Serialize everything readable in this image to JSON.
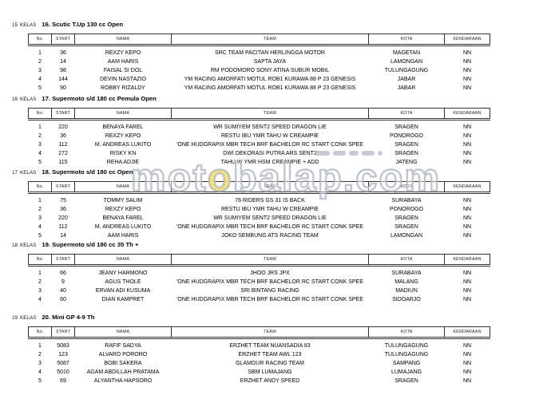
{
  "watermark": {
    "part1": "mot",
    "highlight": "o",
    "part2": "balap.com",
    "outline_color": "#afb5c1",
    "highlight_color": "#f3e26e"
  },
  "columns": [
    "No.",
    "START",
    "NAMA",
    "TEAM",
    "KOTA",
    "KENDARAAN"
  ],
  "sections": [
    {
      "num": "15",
      "kelas": "KELAS",
      "title": "16. Scutic T.Up 130 cc Open",
      "rows": [
        [
          "1",
          "36",
          "REXZY KEPO",
          "SRC TEAM PACITAN HERLINGGA MOTOR",
          "MAGETAN",
          "NN"
        ],
        [
          "2",
          "14",
          "AAM HARIS",
          "SAPTA JAYA",
          "LAMONGAN",
          "NN"
        ],
        [
          "3",
          "98",
          "FAISAL SI DOL",
          "RM PODOMORO SONY ATINA SUBUR MOBIL",
          "TULUNGAGUNG",
          "NN"
        ],
        [
          "4",
          "144",
          "DEVIN NASTAZIO",
          "YM RACING AMORFATI MOTUL ROB1 KURAWA 88 P 23 GENESIS",
          "JABAR",
          "NN"
        ],
        [
          "5",
          "90",
          "ROBBY RIZALDY",
          "YM RACING AMORFATI MOTUL ROB1 KURAWA 88 P 23 GENESIS",
          "JABAR",
          "NN"
        ]
      ]
    },
    {
      "num": "16",
      "kelas": "KELAS",
      "title": "17. Supermoto s/d 180 cc Pemula Open",
      "rows": [
        [
          "1",
          "220",
          "BENAYA FAREL",
          "WR SUMIYEM SENT2 SPEED DRAGON LIE",
          "SRAGEN",
          "NN"
        ],
        [
          "2",
          "36",
          "REXZY KEPO",
          "RESTU IBU YMR TAHU W CREAMPIE",
          "PONOROGO",
          "NN"
        ],
        [
          "3",
          "112",
          "M. ANDREAS LUKITO",
          "'ONE HUDGRAPIX MBR TECH BRF BACHELOR RC START CONK SPEE",
          "SRAGEN",
          "NN"
        ],
        [
          "4",
          "272",
          "RISKY KN",
          "DWI DEKORASI PUTRA ARS SENT2",
          "SRAGEN",
          "NN"
        ],
        [
          "5",
          "115",
          "REHA ADJIE",
          "TAHU W YMR HSM CREAMPIE + ADD",
          "JATENG",
          "NN"
        ]
      ]
    },
    {
      "num": "17",
      "kelas": "KELAS",
      "title": "18. Supermoto s/d 180 cc Open",
      "rows": [
        [
          "1",
          "75",
          "TOMMY SALIM",
          "76 RIDERS GS 31 IS BACK",
          "SURABAYA",
          "NN"
        ],
        [
          "2",
          "36",
          "REXZY KEPO",
          "RESTU IBU YMR TAHU W CREAMPIE",
          "PONOROGO",
          "NN"
        ],
        [
          "3",
          "220",
          "BENAYA FAREL",
          "WR SUMIYEM SENT2 SPEED DRAGON LIE",
          "SRAGEN",
          "NN"
        ],
        [
          "4",
          "112",
          "M. ANDREAS LUKITO",
          "'ONE HUDGRAPIX MBR TECH BRF BACHELOR RC START CONK SPEE",
          "SRAGEN",
          "NN"
        ],
        [
          "5",
          "14",
          "AAM HARIS",
          "JOKO SEMBUNG ATS RACING TEAM",
          "LAMONGAN",
          "NN"
        ]
      ]
    },
    {
      "num": "18",
      "kelas": "KELAS",
      "title": "19. Supermoto s/d 180 cc 35 Th +",
      "rows": [
        [
          "1",
          "66",
          "JEANY HARMONO",
          "JHOO JRS JPX",
          "SURABAYA",
          "NN"
        ],
        [
          "2",
          "9",
          "AGUS THOLE",
          "'ONE HUDGRAPIX MBR TECH BRF BACHELOR RC START CONK SPEE",
          "MALANG",
          "NN"
        ],
        [
          "3",
          "40",
          "ERVAN ADI KUSUMA",
          "SRI BINTANG RACING",
          "MADIUN",
          "NN"
        ],
        [
          "4",
          "60",
          "DIAN KAMPRET",
          "'ONE HUDGRAPIX MBR TECH BRF BACHELOR RC START CONK SPEE",
          "SIDOARJO",
          "NN"
        ]
      ]
    },
    {
      "num": "19",
      "kelas": "KELAS",
      "title": "20. Mini GP 4-9 Th",
      "rows": [
        [
          "1",
          "5083",
          "RAFIF SADYA",
          "ERZHET TEAM NUANSADIA 83",
          "TULUNGAGUNG",
          "NN"
        ],
        [
          "2",
          "123",
          "ALVARO PORORO",
          "ERZHET TEAM AWL 123",
          "TULUNGAGUNG",
          "NN"
        ],
        [
          "3",
          "5087",
          "BOBI SAKERA",
          "GLAMOUR RACING TEAM",
          "SAMPANG",
          "NN"
        ],
        [
          "4",
          "5010",
          "AGAM ABDILLAH PRATAMA",
          "SBM LUMAJANG",
          "LUMAJANG",
          "NN"
        ],
        [
          "5",
          "69",
          "ALYANTHA HAPSORO",
          "ERZHET ANDY SPEED",
          "SRAGEN",
          "NN"
        ]
      ]
    }
  ],
  "section_tops": [
    24,
    117,
    209,
    300,
    391
  ]
}
